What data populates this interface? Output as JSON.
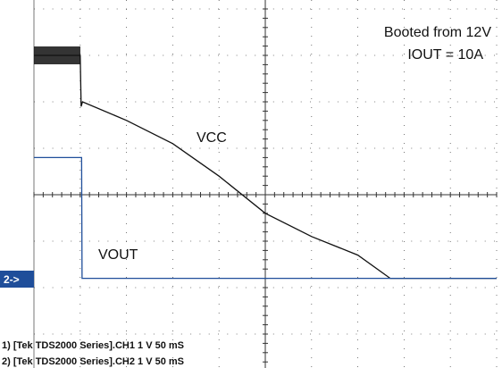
{
  "chart_data": {
    "type": "line",
    "annotations": [
      "Booted from 12V",
      "IOUT = 10A"
    ],
    "marker": "2->",
    "footer": [
      "1) [Tek TDS2000 Series].CH1  1  V    50  mS",
      "2) [Tek TDS2000 Series].CH2  1  V    50  mS"
    ],
    "xlim": [
      0,
      10
    ],
    "ylim": [
      0,
      8
    ],
    "series": [
      {
        "name": "VCC",
        "color": "#111111",
        "x": [
          0,
          1,
          1.02,
          1.05,
          2,
          3,
          4,
          5,
          6,
          7,
          7.7,
          8,
          9,
          10
        ],
        "values": [
          7.0,
          7.0,
          5.9,
          6.0,
          5.6,
          5.1,
          4.4,
          3.6,
          3.1,
          2.7,
          2.2,
          2.2,
          2.2,
          2.2
        ]
      },
      {
        "name": "VOUT",
        "color": "#1f4e9a",
        "x": [
          0,
          1.03,
          1.04,
          10
        ],
        "values": [
          4.8,
          4.8,
          2.2,
          2.2
        ]
      }
    ]
  }
}
